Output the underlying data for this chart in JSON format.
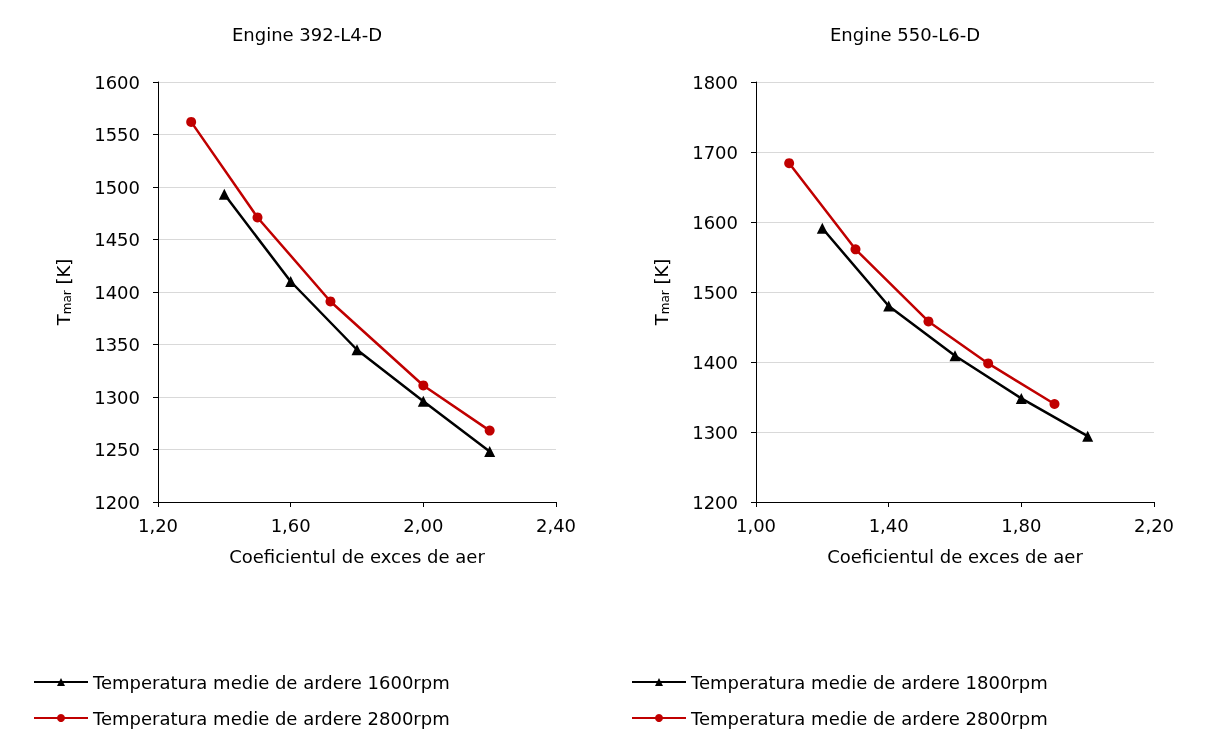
{
  "chart_data": [
    {
      "type": "line",
      "title": "Engine 392-L4-D",
      "xlabel": "Coeficientul de exces de aer",
      "ylabel": "T$_{mar}$ [K]",
      "xlim": [
        1.2,
        2.4
      ],
      "xticks": [
        {
          "value": 1.2,
          "label": "1,20"
        },
        {
          "value": 1.6,
          "label": "1,60"
        },
        {
          "value": 2.0,
          "label": "2,00"
        },
        {
          "value": 2.4,
          "label": "2,40"
        }
      ],
      "ylim": [
        1200,
        1600
      ],
      "yticks": [
        1200,
        1250,
        1300,
        1350,
        1400,
        1450,
        1500,
        1550,
        1600
      ],
      "grid": "y",
      "legend": "bottom",
      "line_style": "solid",
      "series": [
        {
          "name": "Temperatura medie de ardere 1600rpm",
          "color": "#000000",
          "marker": "triangle",
          "x": [
            1.4,
            1.6,
            1.8,
            2.0,
            2.2
          ],
          "values": [
            1493,
            1410,
            1345,
            1296,
            1248
          ]
        },
        {
          "name": "Temperatura medie de ardere 2800rpm",
          "color": "#c00000",
          "marker": "circle",
          "x": [
            1.3,
            1.5,
            1.72,
            2.0,
            2.2
          ],
          "values": [
            1562,
            1471,
            1391,
            1311,
            1268
          ]
        }
      ]
    },
    {
      "type": "line",
      "title": "Engine 550-L6-D",
      "xlabel": "Coeficientul de exces de aer",
      "ylabel": "T$_{mar}$ [K]",
      "xlim": [
        1.0,
        2.2
      ],
      "xticks": [
        {
          "value": 1.0,
          "label": "1,00"
        },
        {
          "value": 1.4,
          "label": "1,40"
        },
        {
          "value": 1.8,
          "label": "1,80"
        },
        {
          "value": 2.2,
          "label": "2,20"
        }
      ],
      "ylim": [
        1200,
        1800
      ],
      "yticks": [
        1200,
        1300,
        1400,
        1500,
        1600,
        1700,
        1800
      ],
      "grid": "y",
      "legend": "bottom",
      "line_style": "solid",
      "series": [
        {
          "name": "Temperatura medie de ardere 1800rpm",
          "color": "#000000",
          "marker": "triangle",
          "x": [
            1.2,
            1.4,
            1.6,
            1.8,
            2.0
          ],
          "values": [
            1591,
            1480,
            1409,
            1348,
            1294
          ]
        },
        {
          "name": "Temperatura medie de ardere 2800rpm",
          "color": "#c00000",
          "marker": "circle",
          "x": [
            1.1,
            1.3,
            1.52,
            1.7,
            1.9
          ],
          "values": [
            1684,
            1561,
            1458,
            1398,
            1340
          ]
        }
      ]
    }
  ]
}
